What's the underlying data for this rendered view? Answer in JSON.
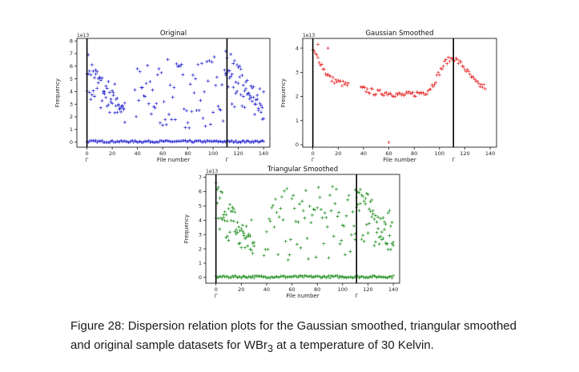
{
  "chart_data": [
    {
      "type": "scatter",
      "title": "Original",
      "ylabel": "Frequency",
      "xlabel": "File number",
      "offset": "1e13",
      "ylim": [
        -0.4,
        8.2
      ],
      "xlim": [
        -8,
        145
      ],
      "yticks": [
        "0",
        "1",
        "2",
        "3",
        "4",
        "5",
        "6",
        "7",
        "8"
      ],
      "xticks": [
        "0",
        "20",
        "40",
        "60",
        "80",
        "100",
        "120",
        "140"
      ],
      "gamma_labels": [
        "Γ",
        "Γ"
      ],
      "gamma_positions": [
        0,
        111
      ],
      "color": "#1f1fcf",
      "marker": "plus",
      "bands": [
        {
          "name": "",
          "x_start": 0,
          "x_end": 30,
          "y_start": 6.3,
          "y_end": 1.8,
          "spread": 0.9
        },
        {
          "name": "",
          "x_start": 0,
          "x_end": 30,
          "y_start": 4.5,
          "y_end": 3.0,
          "spread": 1.4
        },
        {
          "name": "",
          "x_start": 38,
          "x_end": 110,
          "y_start": 3.5,
          "y_end": 4.2,
          "spread": 2.8
        },
        {
          "name": "",
          "x_start": 110,
          "x_end": 140,
          "y_start": 6.8,
          "y_end": 2.2,
          "spread": 0.9
        },
        {
          "name": "",
          "x_start": 110,
          "x_end": 140,
          "y_start": 4.0,
          "y_end": 3.5,
          "spread": 1.5
        },
        {
          "name": "",
          "x_start": 0,
          "x_end": 140,
          "y_start": 0.05,
          "y_end": 0.05,
          "spread": 0.08
        }
      ],
      "panel": "top-left"
    },
    {
      "type": "scatter",
      "title": "Gaussian Smoothed",
      "ylabel": "Frequency",
      "xlabel": "File number",
      "offset": "1e13",
      "ylim": [
        -0.1,
        4.4
      ],
      "xlim": [
        -8,
        145
      ],
      "yticks": [
        "0",
        "1",
        "2",
        "3",
        "4"
      ],
      "xticks": [
        "0",
        "20",
        "40",
        "60",
        "80",
        "100",
        "120",
        "140"
      ],
      "gamma_labels": [
        "Γ",
        "Γ"
      ],
      "gamma_positions": [
        0,
        111
      ],
      "color": "#e32222",
      "marker": "plus",
      "curve": [
        {
          "x": 0,
          "y": 3.9
        },
        {
          "x": 5,
          "y": 3.5
        },
        {
          "x": 10,
          "y": 3.0
        },
        {
          "x": 15,
          "y": 2.7
        },
        {
          "x": 20,
          "y": 2.6
        },
        {
          "x": 25,
          "y": 2.5
        },
        {
          "x": 40,
          "y": 2.3
        },
        {
          "x": 50,
          "y": 2.15
        },
        {
          "x": 60,
          "y": 2.15
        },
        {
          "x": 70,
          "y": 2.05
        },
        {
          "x": 80,
          "y": 2.1
        },
        {
          "x": 90,
          "y": 2.2
        },
        {
          "x": 95,
          "y": 2.5
        },
        {
          "x": 100,
          "y": 3.0
        },
        {
          "x": 105,
          "y": 3.45
        },
        {
          "x": 111,
          "y": 3.6
        },
        {
          "x": 118,
          "y": 3.3
        },
        {
          "x": 125,
          "y": 2.8
        },
        {
          "x": 130,
          "y": 2.5
        },
        {
          "x": 135,
          "y": 2.4
        }
      ],
      "gap": [
        28,
        38
      ],
      "panel": "top-right"
    },
    {
      "type": "scatter",
      "title": "Triangular Smoothed",
      "ylabel": "Frequency",
      "xlabel": "File number",
      "offset": "1e13",
      "ylim": [
        -0.4,
        7.2
      ],
      "xlim": [
        -8,
        145
      ],
      "yticks": [
        "0",
        "1",
        "2",
        "3",
        "4",
        "5",
        "6",
        "7"
      ],
      "xticks": [
        "0",
        "20",
        "40",
        "60",
        "80",
        "100",
        "120",
        "140"
      ],
      "gamma_labels": [
        "Γ",
        "Γ"
      ],
      "gamma_positions": [
        0,
        111
      ],
      "color": "#1a8c1a",
      "marker": "plus",
      "bands": [
        {
          "name": "",
          "x_start": 0,
          "x_end": 30,
          "y_start": 6.0,
          "y_end": 2.0,
          "spread": 0.9
        },
        {
          "name": "",
          "x_start": 0,
          "x_end": 30,
          "y_start": 4.0,
          "y_end": 3.0,
          "spread": 1.4
        },
        {
          "name": "",
          "x_start": 38,
          "x_end": 110,
          "y_start": 3.5,
          "y_end": 4.0,
          "spread": 2.6
        },
        {
          "name": "",
          "x_start": 110,
          "x_end": 140,
          "y_start": 6.5,
          "y_end": 2.0,
          "spread": 0.9
        },
        {
          "name": "",
          "x_start": 110,
          "x_end": 140,
          "y_start": 4.0,
          "y_end": 3.2,
          "spread": 1.4
        },
        {
          "name": "",
          "x_start": 0,
          "x_end": 140,
          "y_start": 0.05,
          "y_end": 0.05,
          "spread": 0.08
        }
      ],
      "panel": "bottom-center"
    }
  ],
  "caption": {
    "prefix": "Figure 28: ",
    "line1": "Dispersion relation plots for the Gaussian smoothed, triangular smoothed",
    "line2_before": "and original sample datasets for WBr",
    "subscript": "3",
    "line2_after": " at a temperature of 30 Kelvin."
  }
}
